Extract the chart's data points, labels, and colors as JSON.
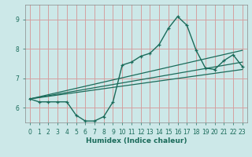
{
  "xlabel": "Humidex (Indice chaleur)",
  "ylabel": "",
  "bg_color": "#cce8e8",
  "grid_color": "#d4a0a0",
  "line_color": "#1a6b5a",
  "xlim": [
    -0.5,
    23.5
  ],
  "ylim": [
    5.5,
    9.5
  ],
  "xticks": [
    0,
    1,
    2,
    3,
    4,
    5,
    6,
    7,
    8,
    9,
    10,
    11,
    12,
    13,
    14,
    15,
    16,
    17,
    18,
    19,
    20,
    21,
    22,
    23
  ],
  "yticks": [
    6,
    7,
    8,
    9
  ],
  "main_curve_x": [
    0,
    1,
    2,
    3,
    4,
    5,
    6,
    7,
    8,
    9,
    10,
    11,
    12,
    13,
    14,
    15,
    16,
    17,
    18,
    19,
    20,
    21,
    22,
    23
  ],
  "main_curve_y": [
    6.3,
    6.2,
    6.2,
    6.2,
    6.2,
    5.75,
    5.55,
    5.55,
    5.7,
    6.2,
    7.45,
    7.55,
    7.75,
    7.85,
    8.15,
    8.7,
    9.1,
    8.8,
    7.95,
    7.35,
    7.3,
    7.6,
    7.8,
    7.4
  ],
  "line2_x": [
    0,
    23
  ],
  "line2_y": [
    6.3,
    7.95
  ],
  "line3_x": [
    0,
    23
  ],
  "line3_y": [
    6.3,
    7.55
  ],
  "line4_x": [
    0,
    23
  ],
  "line4_y": [
    6.3,
    7.3
  ]
}
